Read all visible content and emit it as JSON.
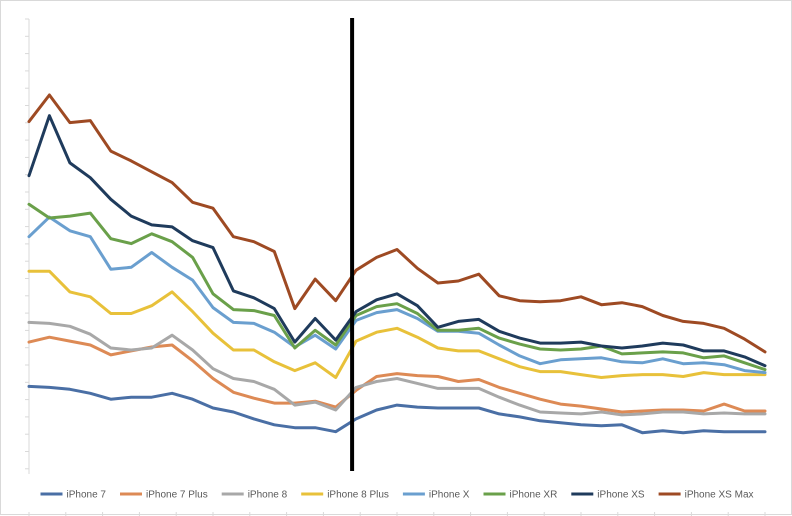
{
  "chart_data": {
    "type": "line",
    "title": "",
    "xlabel": "",
    "ylabel": "",
    "grid": false,
    "legend_position": "bottom",
    "x": [
      1,
      2,
      3,
      4,
      5,
      6,
      7,
      8,
      9,
      10,
      11,
      12,
      13,
      14,
      15,
      16,
      17,
      18,
      19,
      20,
      21,
      22,
      23,
      24,
      25,
      26,
      27,
      28,
      29,
      30,
      31,
      32,
      33,
      34,
      35,
      36,
      37
    ],
    "ylim": [
      0,
      450
    ],
    "divider_at_index": 16,
    "series": [
      {
        "name": "iPhone 7",
        "color": "#4a6fa5",
        "values": [
          89,
          88,
          86,
          82,
          76,
          78,
          78,
          82,
          76,
          67,
          63,
          56,
          50,
          47,
          47,
          43,
          56,
          65,
          70,
          68,
          67,
          67,
          67,
          61,
          58,
          54,
          52,
          50,
          49,
          50,
          42,
          44,
          42,
          44,
          43,
          43,
          43
        ]
      },
      {
        "name": "iPhone 7 Plus",
        "color": "#dd8a55",
        "values": [
          134,
          139,
          135,
          131,
          121,
          125,
          129,
          131,
          115,
          97,
          83,
          77,
          72,
          72,
          74,
          68,
          85,
          99,
          102,
          100,
          99,
          94,
          96,
          88,
          82,
          76,
          71,
          69,
          66,
          63,
          64,
          65,
          65,
          64,
          71,
          64,
          64
        ]
      },
      {
        "name": "iPhone 8",
        "color": "#a8a8a8",
        "values": [
          154,
          153,
          150,
          142,
          128,
          126,
          128,
          141,
          126,
          107,
          97,
          94,
          86,
          70,
          73,
          65,
          88,
          94,
          97,
          92,
          87,
          87,
          87,
          78,
          70,
          63,
          62,
          61,
          63,
          60,
          61,
          63,
          63,
          61,
          62,
          61,
          61
        ]
      },
      {
        "name": "iPhone 8 Plus",
        "color": "#e8c13a",
        "values": [
          206,
          206,
          185,
          180,
          163,
          163,
          171,
          185,
          165,
          143,
          126,
          126,
          114,
          105,
          113,
          98,
          135,
          144,
          148,
          139,
          128,
          125,
          125,
          117,
          109,
          104,
          104,
          101,
          98,
          100,
          101,
          101,
          99,
          103,
          101,
          101,
          101
        ]
      },
      {
        "name": "iPhone X",
        "color": "#6a9fcf",
        "values": [
          241,
          261,
          247,
          241,
          208,
          210,
          225,
          210,
          197,
          169,
          154,
          153,
          144,
          129,
          141,
          127,
          156,
          164,
          167,
          158,
          145,
          145,
          143,
          131,
          120,
          112,
          116,
          117,
          118,
          114,
          113,
          117,
          112,
          113,
          111,
          105,
          103
        ]
      },
      {
        "name": "iPhone XR",
        "color": "#6aa04a",
        "values": [
          274,
          260,
          262,
          265,
          239,
          234,
          244,
          236,
          220,
          183,
          167,
          166,
          161,
          128,
          146,
          131,
          161,
          170,
          173,
          163,
          146,
          146,
          148,
          138,
          132,
          127,
          126,
          127,
          130,
          122,
          123,
          124,
          123,
          118,
          120,
          113,
          106
        ]
      },
      {
        "name": "iPhone XS",
        "color": "#1f3b5c",
        "values": [
          303,
          364,
          316,
          301,
          279,
          262,
          253,
          251,
          237,
          230,
          186,
          179,
          168,
          134,
          158,
          136,
          165,
          177,
          183,
          171,
          149,
          155,
          157,
          145,
          138,
          133,
          133,
          134,
          130,
          128,
          130,
          133,
          131,
          125,
          125,
          119,
          110
        ]
      },
      {
        "name": "iPhone XS Max",
        "color": "#9e4a23",
        "values": [
          358,
          385,
          357,
          359,
          328,
          318,
          307,
          296,
          276,
          270,
          241,
          236,
          226,
          168,
          198,
          176,
          207,
          220,
          228,
          209,
          194,
          196,
          203,
          181,
          176,
          175,
          176,
          180,
          172,
          174,
          170,
          161,
          155,
          153,
          148,
          137,
          124
        ]
      }
    ]
  }
}
